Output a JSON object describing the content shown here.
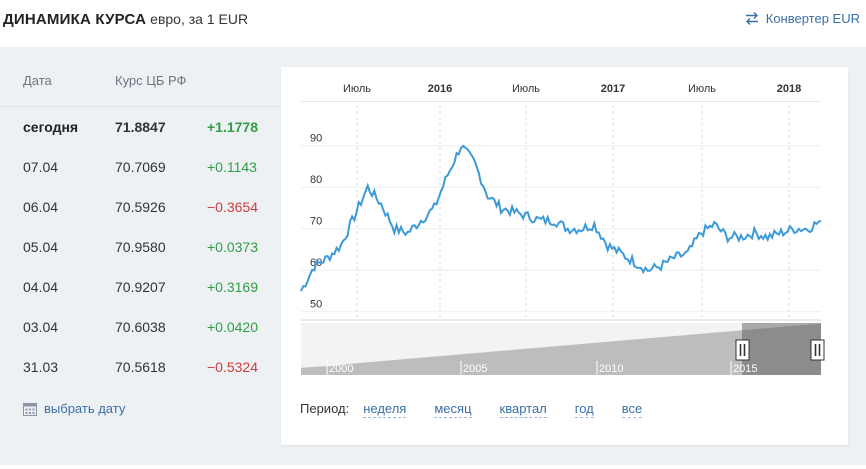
{
  "header": {
    "title": "ДИНАМИКА КУРСА",
    "subtitle": "евро, за 1 EUR",
    "converter_label": "Конвертер EUR"
  },
  "table": {
    "col_date": "Дата",
    "col_rate": "Курс ЦБ РФ",
    "rows": [
      {
        "date": "сегодня",
        "rate": "71.8847",
        "change": "+1.1778",
        "dir": "pos",
        "bold": true
      },
      {
        "date": "07.04",
        "rate": "70.7069",
        "change": "+0.1143",
        "dir": "pos"
      },
      {
        "date": "06.04",
        "rate": "70.5926",
        "change": "−0.3654",
        "dir": "neg"
      },
      {
        "date": "05.04",
        "rate": "70.9580",
        "change": "+0.0373",
        "dir": "pos"
      },
      {
        "date": "04.04",
        "rate": "70.9207",
        "change": "+0.3169",
        "dir": "pos"
      },
      {
        "date": "03.04",
        "rate": "70.6038",
        "change": "+0.0420",
        "dir": "pos"
      },
      {
        "date": "31.03",
        "rate": "70.5618",
        "change": "−0.5324",
        "dir": "neg"
      }
    ],
    "pick_date": "выбрать дату"
  },
  "period": {
    "label": "Период:",
    "options": [
      "неделя",
      "месяц",
      "квартал",
      "год",
      "все"
    ]
  },
  "colors": {
    "line": "#3d9ad8",
    "positive": "#2e9e45",
    "negative": "#d23b3b",
    "link": "#3a6fa8"
  },
  "chart_data": {
    "type": "line",
    "x_ticks": [
      {
        "label": "Июль",
        "bold": false
      },
      {
        "label": "2016",
        "bold": true
      },
      {
        "label": "Июль",
        "bold": false
      },
      {
        "label": "2017",
        "bold": true
      },
      {
        "label": "Июль",
        "bold": false
      },
      {
        "label": "2018",
        "bold": true
      }
    ],
    "y_ticks": [
      50,
      60,
      70,
      80,
      90
    ],
    "ylim": [
      48,
      95
    ],
    "series": [
      {
        "x": [
          "2015-01",
          "2015-02",
          "2015-03",
          "2015-04",
          "2015-05",
          "2015-06",
          "2015-07",
          "2015-08",
          "2015-09",
          "2015-10",
          "2015-11",
          "2015-12",
          "2016-01",
          "2016-02",
          "2016-03",
          "2016-04",
          "2016-05",
          "2016-06",
          "2016-07",
          "2016-08",
          "2016-09",
          "2016-10",
          "2016-11",
          "2016-12",
          "2017-01",
          "2017-02",
          "2017-03",
          "2017-04",
          "2017-05",
          "2017-06",
          "2017-07",
          "2017-08",
          "2017-09",
          "2017-10",
          "2017-11",
          "2017-12",
          "2018-01",
          "2018-02",
          "2018-03",
          "2018-04"
        ],
        "values": [
          55,
          61,
          63,
          66,
          73,
          80,
          76,
          70,
          69,
          72,
          75,
          83,
          90,
          86,
          78,
          75,
          74,
          73,
          72,
          72,
          70,
          70,
          71,
          66,
          64,
          62,
          60,
          61,
          63,
          64,
          69,
          71,
          68,
          68,
          69,
          68,
          69,
          70,
          70,
          71.9
        ]
      }
    ],
    "navigator": {
      "year_labels": [
        "2000",
        "2005",
        "2010",
        "2015"
      ],
      "values": [
        36,
        35,
        35,
        35,
        34,
        34,
        35,
        36,
        37,
        38,
        38,
        38,
        38,
        39,
        39,
        39,
        40,
        40,
        41,
        41,
        41,
        42,
        42,
        42,
        43,
        43,
        44,
        44,
        44,
        45,
        45,
        45,
        46,
        46,
        46,
        47,
        47,
        47,
        48,
        48,
        49,
        49,
        49,
        50,
        50,
        50,
        51,
        51,
        52,
        52,
        52,
        53,
        53,
        53,
        54,
        54,
        54,
        55,
        55,
        55,
        56,
        56,
        57,
        57,
        58,
        58,
        59,
        60,
        60,
        61,
        62,
        63,
        64,
        65,
        66,
        66,
        67,
        68,
        69,
        70,
        71,
        72,
        73,
        73,
        74,
        74,
        75,
        75,
        76,
        76,
        77,
        77,
        78,
        78,
        79,
        79,
        80,
        80,
        81,
        81,
        82,
        82,
        83,
        83,
        84,
        84,
        85,
        85,
        86,
        86,
        87,
        87,
        88,
        88,
        89,
        89,
        90,
        90,
        91,
        91,
        92,
        92,
        93,
        93,
        94,
        94,
        95,
        95,
        96,
        96,
        97,
        97,
        98,
        98,
        99,
        99,
        100,
        100,
        101,
        101,
        102,
        102,
        103,
        103,
        104,
        104,
        105,
        105,
        106,
        106,
        107,
        107,
        108,
        108,
        109,
        109,
        110,
        110,
        111,
        111,
        112,
        112,
        113,
        113,
        114,
        114,
        115,
        115,
        116,
        116,
        117,
        117,
        118,
        118,
        119,
        119,
        120,
        120,
        121,
        121,
        122,
        122,
        123,
        123,
        124,
        124,
        125,
        125,
        126,
        126,
        127,
        127,
        128,
        128,
        129,
        129,
        130,
        130,
        131,
        131,
        132,
        132,
        133,
        133,
        134,
        134,
        135,
        135,
        136,
        136,
        137,
        137,
        138,
        138,
        139,
        139,
        140,
        140,
        141,
        141,
        142,
        142,
        143,
        143,
        144,
        144,
        145,
        145,
        146,
        146,
        147,
        147,
        148,
        148,
        149,
        149,
        150,
        150,
        151,
        151,
        152,
        152,
        153,
        153,
        154,
        154,
        155,
        155,
        156,
        156,
        157,
        157,
        158,
        158,
        159,
        159,
        160,
        160,
        161,
        161,
        162,
        162,
        163,
        163,
        164,
        164,
        165,
        165,
        166,
        166,
        167,
        167,
        168,
        168,
        169,
        169,
        170,
        170,
        171,
        171,
        172,
        172,
        173,
        173,
        174,
        174,
        175,
        175,
        176,
        176,
        177,
        177,
        178,
        178,
        179,
        179,
        180,
        180,
        181,
        181,
        182,
        182,
        183,
        183,
        184,
        184,
        185,
        185,
        186,
        186,
        187,
        187,
        188,
        188,
        189,
        189,
        190,
        190,
        191,
        191,
        192,
        192,
        193,
        193,
        194,
        194,
        195,
        195,
        196,
        196,
        197,
        197,
        198,
        198,
        199,
        199,
        200,
        200,
        201,
        201,
        202,
        202,
        203,
        203,
        204,
        204,
        205,
        205,
        206,
        206,
        207,
        207,
        208,
        208,
        209,
        209,
        210,
        210,
        211,
        211,
        212,
        212,
        213,
        213,
        214,
        214,
        215,
        215,
        216,
        216,
        217,
        217,
        218,
        218,
        219,
        219,
        220,
        220,
        221,
        221,
        222,
        222,
        223,
        223,
        224,
        224,
        225,
        225,
        226,
        226,
        227,
        227,
        228,
        228,
        229,
        229,
        230,
        230,
        231,
        231,
        232,
        232,
        233,
        233,
        234,
        234,
        235,
        235,
        236,
        236,
        237,
        237,
        238,
        238,
        239,
        239,
        240,
        240,
        241,
        241,
        242,
        242,
        243,
        243,
        244,
        244,
        245,
        245,
        246,
        246,
        247,
        247,
        248,
        248,
        249,
        249,
        250,
        250,
        251,
        251,
        252,
        252,
        253,
        253,
        254,
        254,
        255,
        255,
        256,
        256,
        257,
        257,
        258,
        258,
        259,
        259,
        260,
        260,
        261,
        261,
        262,
        262,
        263,
        263,
        264,
        264,
        265,
        265,
        266,
        266,
        267,
        267,
        268,
        268,
        269,
        269,
        270,
        270,
        271,
        271,
        272,
        272,
        273,
        273,
        274,
        274,
        275,
        275,
        276,
        276,
        277,
        277,
        278,
        278,
        279,
        279,
        280,
        280,
        281,
        281,
        282,
        282,
        283,
        283,
        284,
        284,
        285,
        285,
        286,
        286,
        287,
        287,
        288,
        288,
        289,
        289,
        290,
        290,
        291,
        291,
        292,
        292,
        293,
        293,
        294,
        294,
        295,
        295,
        296,
        296,
        297,
        297,
        298,
        298,
        299,
        299,
        300,
        300,
        301,
        301,
        302,
        302,
        303,
        303,
        304,
        304,
        305,
        305,
        306,
        306,
        307,
        307,
        308,
        308,
        309,
        309,
        310,
        310,
        311,
        311,
        312,
        312,
        313,
        313,
        314,
        314,
        315,
        315,
        316,
        316,
        317,
        317,
        318,
        318,
        319,
        319,
        320,
        320,
        321,
        321,
        322,
        322,
        323,
        323,
        324,
        324,
        325,
        325,
        326,
        326,
        327,
        327,
        328,
        328,
        329,
        329,
        330,
        330,
        331,
        331,
        332,
        332,
        333,
        333,
        334,
        334,
        335,
        335,
        336,
        336,
        337,
        337,
        338,
        338,
        339,
        339,
        340,
        340,
        341,
        341,
        342,
        342,
        343,
        343,
        344,
        344,
        345,
        345,
        346,
        346,
        347,
        347,
        348,
        348,
        349,
        349,
        350,
        350,
        351,
        351,
        352,
        352,
        353,
        353,
        354,
        354,
        355,
        355,
        356,
        356,
        357,
        357,
        358,
        358,
        359,
        359,
        360,
        360,
        361,
        361,
        362,
        362,
        363,
        363,
        364,
        364,
        365,
        365,
        366,
        366,
        367,
        367,
        368,
        368,
        369,
        369,
        370,
        370,
        371,
        371,
        372,
        372,
        373,
        373,
        374,
        374,
        375,
        375,
        376,
        376,
        377,
        377,
        378,
        378,
        379,
        379,
        380,
        380,
        381,
        381,
        382,
        382,
        383,
        383,
        384,
        384,
        385,
        385,
        386,
        386,
        387,
        387,
        388,
        388,
        389,
        389,
        390,
        390,
        391,
        391,
        392,
        392,
        393,
        393,
        394,
        394,
        395,
        395,
        396,
        396,
        397,
        397,
        398,
        398,
        399,
        399,
        400,
        400,
        401,
        401,
        402,
        402,
        403,
        403,
        404,
        404,
        405,
        405,
        406,
        406,
        407,
        407,
        408,
        408,
        409,
        409,
        410,
        410,
        411,
        411,
        412,
        412,
        413,
        413,
        414,
        414,
        415,
        415,
        416,
        416,
        417,
        417,
        418,
        418,
        419,
        419,
        420,
        420,
        421,
        421,
        422,
        422,
        423,
        423,
        424,
        424,
        425,
        425,
        426,
        426,
        427,
        427,
        428,
        428,
        429,
        429,
        430,
        430,
        431,
        431,
        432,
        432,
        433,
        433,
        434,
        434,
        435,
        435,
        436,
        436,
        437,
        437,
        438,
        438,
        439,
        439,
        440,
        440,
        441,
        441,
        442,
        442,
        443,
        443,
        444,
        444,
        445,
        445,
        446,
        446,
        447,
        447,
        448,
        448,
        449,
        449,
        450,
        450,
        451,
        451,
        452,
        452,
        453,
        453,
        454,
        454,
        455,
        455,
        456,
        456,
        457,
        457,
        458,
        458,
        459,
        459,
        460,
        460,
        461,
        461,
        462,
        462,
        463,
        463,
        464,
        464,
        465,
        465,
        466,
        466,
        467,
        467,
        468,
        468,
        469,
        469,
        470,
        470,
        471,
        471,
        472,
        472,
        473,
        473,
        474,
        474,
        475,
        475,
        476,
        476,
        477,
        477,
        478,
        478,
        479,
        479,
        480,
        480,
        481,
        481,
        482,
        482,
        483,
        483,
        484,
        484,
        485,
        485,
        486,
        486,
        487,
        487,
        488,
        488,
        489,
        489,
        490,
        490,
        491,
        491,
        492,
        492,
        493,
        493,
        494,
        494,
        495,
        495,
        496,
        496,
        497,
        497,
        498,
        498,
        499,
        499,
        500
      ]
    }
  }
}
